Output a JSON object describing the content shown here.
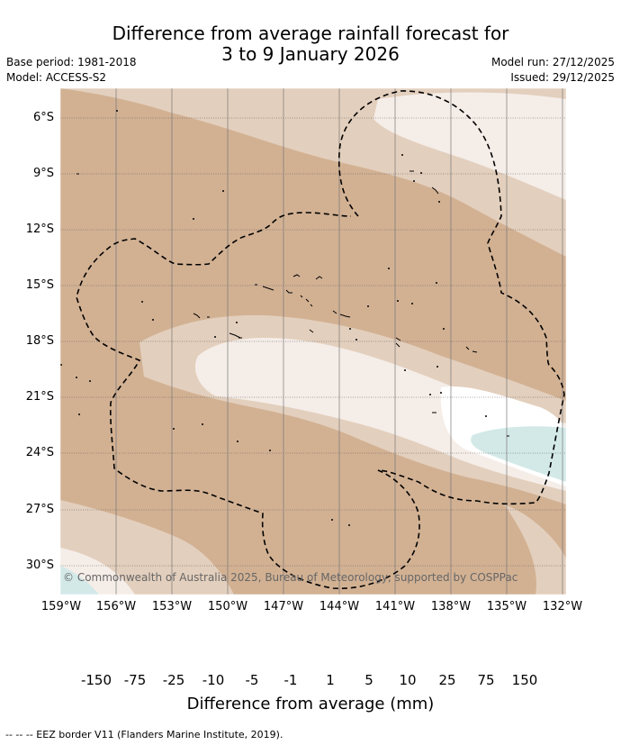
{
  "title": {
    "line1": "Difference from average rainfall forecast for",
    "line2": "3 to 9 January 2026"
  },
  "meta": {
    "base_period": "Base period: 1981-2018",
    "model": "Model: ACCESS-S2",
    "model_run": "Model run: 27/12/2025",
    "issued": "Issued: 29/12/2025"
  },
  "map": {
    "latitude_labels": [
      "6°S",
      "9°S",
      "12°S",
      "15°S",
      "18°S",
      "21°S",
      "24°S",
      "27°S",
      "30°S"
    ],
    "longitude_labels": [
      "159°W",
      "156°W",
      "153°W",
      "150°W",
      "147°W",
      "144°W",
      "141°W",
      "138°W",
      "135°W",
      "132°W"
    ],
    "copyright": "© Commonwealth of Australia 2025, Bureau of Meteorology, supported by COSPPac",
    "colors": {
      "dry_25_75": "#d2b193",
      "dry_10_25": "#e3cfbd",
      "dry_1_10": "#f5ede8",
      "neutral": "#ffffff",
      "wet_1_5": "#d3e9e8"
    }
  },
  "colorbar": {
    "ticks": [
      "-150",
      "-75",
      "-25",
      "-10",
      "-5",
      "-1",
      "1",
      "5",
      "10",
      "25",
      "75",
      "150"
    ],
    "colors": [
      "#a66f35",
      "#b47a41",
      "#c39466",
      "#d2b193",
      "#e3cfbd",
      "#f5ede8",
      "#ffffff",
      "#d3e9e8",
      "#a9d5d3",
      "#82c3c0",
      "#5bb0ad",
      "#369e9a",
      "#2c8a87"
    ],
    "title": "Difference from average (mm)"
  },
  "footer": "--  --  -- EEZ border V11 (Flanders Marine Institute, 2019)."
}
